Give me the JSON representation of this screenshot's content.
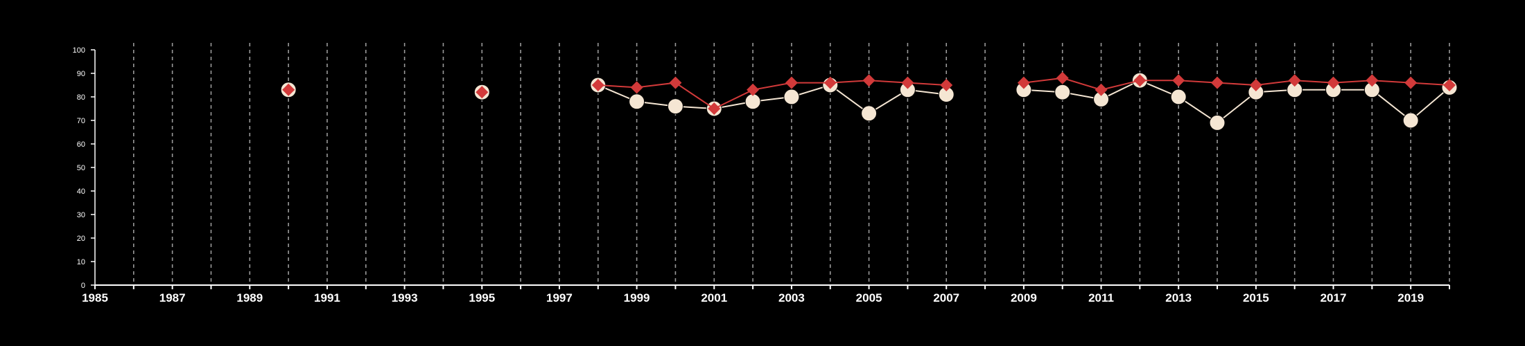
{
  "chart_data": {
    "type": "line",
    "title": "",
    "xlabel": "",
    "ylabel": "",
    "xlim": [
      1985,
      2020
    ],
    "ylim": [
      0,
      100
    ],
    "x_tick_labels": [
      "1985",
      "1987",
      "1989",
      "1991",
      "1993",
      "1995",
      "1997",
      "1999",
      "2001",
      "2003",
      "2005",
      "2007",
      "2009",
      "2011",
      "2013",
      "2015",
      "2017",
      "2019"
    ],
    "y_tick_labels": [
      "0",
      "10",
      "20",
      "30",
      "40",
      "50",
      "60",
      "70",
      "80",
      "90",
      "100"
    ],
    "grid": "vertical dashed lines at every year",
    "colors": {
      "background": "#000000",
      "series_a": "#f5e6d3",
      "series_b": "#d23a3a",
      "axis": "#ffffff"
    },
    "series": [
      {
        "marker": "circle",
        "x": [
          1990,
          1995,
          1998,
          1999,
          2000,
          2001,
          2002,
          2003,
          2004,
          2005,
          2006,
          2007,
          2009,
          2010,
          2011,
          2012,
          2013,
          2014,
          2015,
          2016,
          2017,
          2018,
          2019,
          2020
        ],
        "y": [
          83,
          82,
          85,
          78,
          76,
          75,
          78,
          80,
          85,
          73,
          83,
          81,
          83,
          82,
          79,
          87,
          80,
          69,
          82,
          83,
          83,
          83,
          70,
          84
        ]
      },
      {
        "marker": "diamond",
        "x": [
          1990,
          1995,
          1998,
          1999,
          2000,
          2001,
          2002,
          2003,
          2004,
          2005,
          2006,
          2007,
          2009,
          2010,
          2011,
          2012,
          2013,
          2014,
          2015,
          2016,
          2017,
          2018,
          2019,
          2020
        ],
        "y": [
          83,
          82,
          85,
          84,
          86,
          75,
          83,
          86,
          86,
          87,
          86,
          85,
          86,
          88,
          83,
          87,
          87,
          86,
          85,
          87,
          86,
          87,
          86,
          85
        ]
      }
    ]
  }
}
